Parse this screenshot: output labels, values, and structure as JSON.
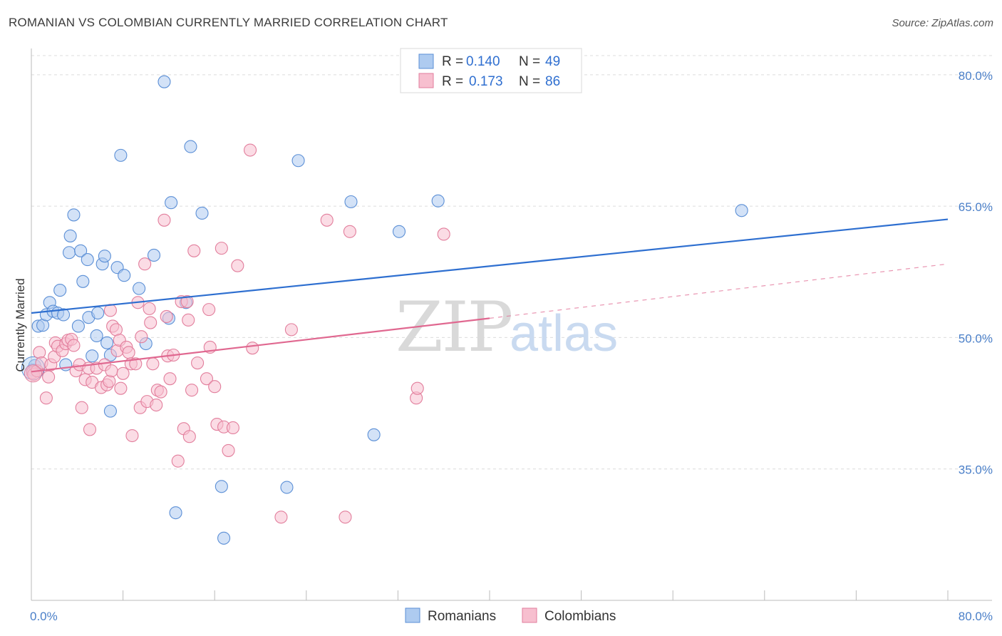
{
  "title": "ROMANIAN VS COLOMBIAN CURRENTLY MARRIED CORRELATION CHART",
  "source": "Source: ZipAtlas.com",
  "watermark": {
    "zip": "ZIP",
    "atlas": "atlas"
  },
  "legend_top": {
    "rows": [
      {
        "r_label": "R =",
        "r_value": "0.140",
        "n_label": "N =",
        "n_value": "49",
        "color": "#aecbf0"
      },
      {
        "r_label": "R =",
        "r_value": "0.173",
        "n_label": "N =",
        "n_value": "86",
        "color": "#f7bfcf"
      }
    ]
  },
  "legend_bottom": {
    "items": [
      {
        "label": "Romanians",
        "color": "#aecbf0"
      },
      {
        "label": "Colombians",
        "color": "#f7bfcf"
      }
    ]
  },
  "chart_data": {
    "type": "scatter",
    "title": "ROMANIAN VS COLOMBIAN CURRENTLY MARRIED CORRELATION CHART",
    "xlabel": "",
    "ylabel": "Currently Married",
    "xlim": [
      0,
      80
    ],
    "ylim": [
      20,
      83
    ],
    "x_tick_labels": [
      "0.0%",
      "80.0%"
    ],
    "y_tick_labels": [
      "80.0%",
      "65.0%",
      "50.0%",
      "35.0%"
    ],
    "y_ticks": [
      80,
      65,
      50,
      35
    ],
    "grid": true,
    "legend_position": "top-center",
    "series": [
      {
        "name": "Romanians",
        "color": "#aecbf0",
        "stroke": "#5b8fd6",
        "trend_color": "#2e6fd0",
        "trend": {
          "x0": 0,
          "y0": 52.8,
          "x1": 80,
          "y1": 63.5
        },
        "points": [
          [
            0.1,
            46.3
          ],
          [
            0.3,
            46.8
          ],
          [
            0.6,
            51.3
          ],
          [
            1.0,
            51.4
          ],
          [
            1.3,
            52.6
          ],
          [
            1.6,
            54.0
          ],
          [
            1.9,
            53.0
          ],
          [
            2.3,
            52.8
          ],
          [
            2.5,
            55.4
          ],
          [
            2.8,
            52.6
          ],
          [
            3.0,
            46.9
          ],
          [
            3.3,
            59.7
          ],
          [
            3.4,
            61.6
          ],
          [
            3.7,
            64.0
          ],
          [
            4.1,
            51.3
          ],
          [
            4.3,
            59.9
          ],
          [
            4.5,
            56.4
          ],
          [
            4.9,
            58.9
          ],
          [
            5.0,
            52.3
          ],
          [
            5.3,
            47.9
          ],
          [
            5.7,
            50.2
          ],
          [
            5.8,
            52.8
          ],
          [
            6.2,
            58.4
          ],
          [
            6.4,
            59.3
          ],
          [
            6.6,
            49.4
          ],
          [
            6.9,
            48.0
          ],
          [
            6.9,
            41.6
          ],
          [
            7.5,
            58.0
          ],
          [
            7.8,
            70.8
          ],
          [
            8.1,
            57.1
          ],
          [
            9.4,
            55.6
          ],
          [
            10.0,
            49.3
          ],
          [
            10.7,
            59.4
          ],
          [
            11.6,
            79.2
          ],
          [
            12.0,
            52.2
          ],
          [
            12.2,
            65.4
          ],
          [
            12.6,
            30.0
          ],
          [
            13.5,
            54.0
          ],
          [
            13.9,
            71.8
          ],
          [
            14.9,
            64.2
          ],
          [
            16.6,
            33.0
          ],
          [
            16.8,
            27.1
          ],
          [
            22.3,
            32.9
          ],
          [
            23.3,
            70.2
          ],
          [
            27.9,
            65.5
          ],
          [
            29.9,
            38.9
          ],
          [
            32.1,
            62.1
          ],
          [
            35.5,
            65.6
          ],
          [
            62.0,
            64.5
          ]
        ]
      },
      {
        "name": "Colombians",
        "color": "#f7bfcf",
        "stroke": "#e27e9c",
        "trend_color": "#e06890",
        "trend": {
          "x0": 0,
          "y0": 46.1,
          "x1": 40,
          "y1": 52.2
        },
        "trend_dashed_to": {
          "x": 80,
          "y": 58.4
        },
        "points": [
          [
            0.1,
            46.0
          ],
          [
            0.2,
            45.8
          ],
          [
            0.5,
            46.2
          ],
          [
            0.7,
            48.3
          ],
          [
            0.9,
            47.1
          ],
          [
            1.3,
            43.1
          ],
          [
            1.5,
            45.5
          ],
          [
            1.7,
            46.9
          ],
          [
            2.0,
            47.8
          ],
          [
            2.1,
            49.4
          ],
          [
            2.3,
            49.0
          ],
          [
            2.7,
            48.5
          ],
          [
            3.0,
            49.3
          ],
          [
            3.2,
            49.7
          ],
          [
            3.5,
            49.8
          ],
          [
            3.7,
            49.1
          ],
          [
            3.9,
            46.2
          ],
          [
            4.2,
            46.9
          ],
          [
            4.4,
            42.0
          ],
          [
            4.7,
            45.2
          ],
          [
            5.0,
            46.5
          ],
          [
            5.1,
            39.5
          ],
          [
            5.3,
            44.9
          ],
          [
            5.7,
            46.5
          ],
          [
            6.1,
            44.3
          ],
          [
            6.4,
            46.9
          ],
          [
            6.6,
            44.6
          ],
          [
            6.8,
            45.0
          ],
          [
            7.0,
            46.2
          ],
          [
            7.1,
            51.3
          ],
          [
            7.4,
            50.9
          ],
          [
            7.5,
            48.5
          ],
          [
            7.7,
            49.7
          ],
          [
            7.8,
            44.2
          ],
          [
            8.0,
            45.9
          ],
          [
            8.3,
            48.9
          ],
          [
            8.5,
            48.3
          ],
          [
            8.7,
            47.0
          ],
          [
            8.8,
            38.8
          ],
          [
            9.1,
            47.0
          ],
          [
            9.3,
            54.0
          ],
          [
            9.5,
            42.0
          ],
          [
            9.9,
            58.4
          ],
          [
            10.1,
            42.7
          ],
          [
            10.3,
            53.3
          ],
          [
            10.4,
            51.7
          ],
          [
            10.6,
            47.0
          ],
          [
            10.9,
            42.3
          ],
          [
            11.0,
            44.0
          ],
          [
            11.3,
            43.8
          ],
          [
            11.6,
            63.4
          ],
          [
            11.9,
            47.9
          ],
          [
            12.1,
            45.3
          ],
          [
            12.4,
            48.0
          ],
          [
            12.8,
            35.9
          ],
          [
            13.1,
            54.1
          ],
          [
            13.3,
            39.6
          ],
          [
            13.6,
            54.1
          ],
          [
            13.8,
            38.7
          ],
          [
            14.0,
            44.0
          ],
          [
            14.2,
            59.9
          ],
          [
            14.5,
            47.1
          ],
          [
            15.3,
            45.3
          ],
          [
            15.5,
            53.2
          ],
          [
            15.6,
            48.9
          ],
          [
            16.0,
            44.4
          ],
          [
            16.2,
            40.1
          ],
          [
            16.6,
            60.2
          ],
          [
            16.8,
            39.8
          ],
          [
            17.2,
            37.1
          ],
          [
            17.6,
            39.7
          ],
          [
            18.0,
            58.2
          ],
          [
            19.1,
            71.4
          ],
          [
            19.3,
            48.8
          ],
          [
            21.8,
            29.5
          ],
          [
            22.7,
            50.9
          ],
          [
            25.8,
            63.4
          ],
          [
            27.4,
            29.5
          ],
          [
            27.8,
            62.1
          ],
          [
            33.6,
            43.1
          ],
          [
            33.7,
            44.2
          ],
          [
            36.0,
            61.8
          ],
          [
            13.7,
            52.0
          ],
          [
            11.8,
            52.4
          ],
          [
            6.9,
            53.1
          ],
          [
            9.6,
            50.1
          ]
        ]
      }
    ]
  }
}
